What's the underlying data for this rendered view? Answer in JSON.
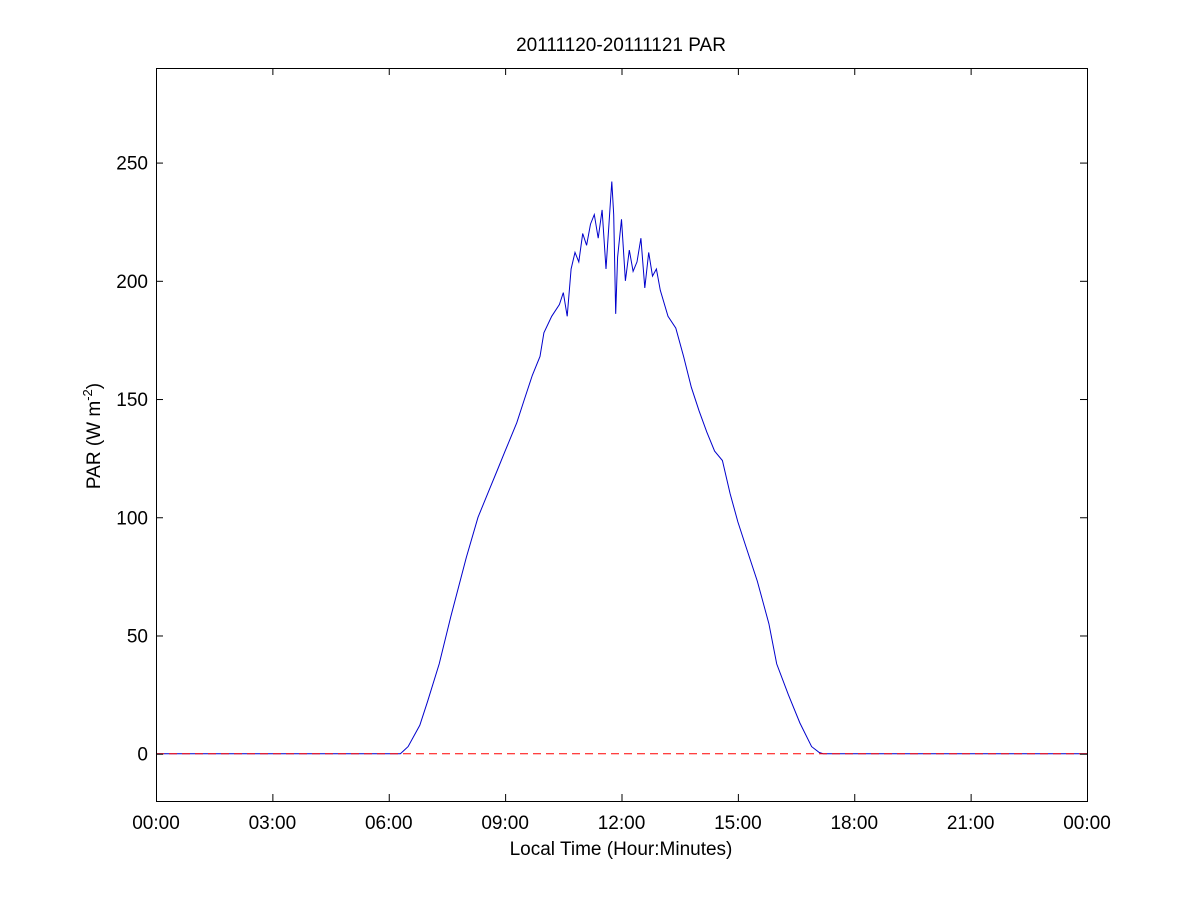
{
  "chart_data": {
    "type": "line",
    "title": "20111120-20111121 PAR",
    "xlabel": "Local Time (Hour:Minutes)",
    "ylabel": "PAR (W m",
    "ylabel_superscript": "-2",
    "ylabel_close": ")",
    "xlim": [
      0,
      24
    ],
    "ylim": [
      -20,
      290
    ],
    "x_ticks": [
      0,
      3,
      6,
      9,
      12,
      15,
      18,
      21,
      24
    ],
    "x_tick_labels": [
      "00:00",
      "03:00",
      "06:00",
      "09:00",
      "12:00",
      "15:00",
      "18:00",
      "21:00",
      "00:00"
    ],
    "y_ticks": [
      0,
      50,
      100,
      150,
      200,
      250
    ],
    "y_tick_labels": [
      "0",
      "50",
      "100",
      "150",
      "200",
      "250"
    ],
    "grid": false,
    "series": [
      {
        "color": "#0000cc",
        "style": "solid",
        "x": [
          0,
          6.3,
          6.5,
          6.8,
          7.0,
          7.3,
          7.6,
          8.0,
          8.3,
          8.6,
          8.8,
          9.0,
          9.3,
          9.5,
          9.7,
          9.9,
          10.0,
          10.2,
          10.4,
          10.5,
          10.6,
          10.7,
          10.8,
          10.9,
          11.0,
          11.1,
          11.2,
          11.3,
          11.4,
          11.5,
          11.6,
          11.7,
          11.75,
          11.8,
          11.85,
          11.9,
          12.0,
          12.1,
          12.2,
          12.3,
          12.4,
          12.5,
          12.6,
          12.7,
          12.8,
          12.9,
          13.0,
          13.2,
          13.4,
          13.6,
          13.8,
          14.0,
          14.2,
          14.4,
          14.6,
          14.8,
          15.0,
          15.2,
          15.5,
          15.8,
          16.0,
          16.3,
          16.6,
          16.9,
          17.1,
          17.2,
          24
        ],
        "y": [
          0,
          0,
          3,
          12,
          22,
          38,
          58,
          83,
          100,
          112,
          120,
          128,
          140,
          150,
          160,
          168,
          178,
          185,
          190,
          195,
          185,
          205,
          212,
          208,
          220,
          215,
          224,
          228,
          218,
          230,
          205,
          230,
          242,
          228,
          186,
          210,
          226,
          200,
          213,
          204,
          208,
          218,
          197,
          212,
          202,
          205,
          196,
          185,
          180,
          168,
          155,
          145,
          136,
          128,
          124,
          110,
          98,
          88,
          73,
          55,
          38,
          25,
          13,
          3,
          0.5,
          0,
          0
        ]
      },
      {
        "color": "#ff0000",
        "style": "dashed",
        "x": [
          0,
          24
        ],
        "y": [
          0,
          0
        ]
      }
    ]
  }
}
